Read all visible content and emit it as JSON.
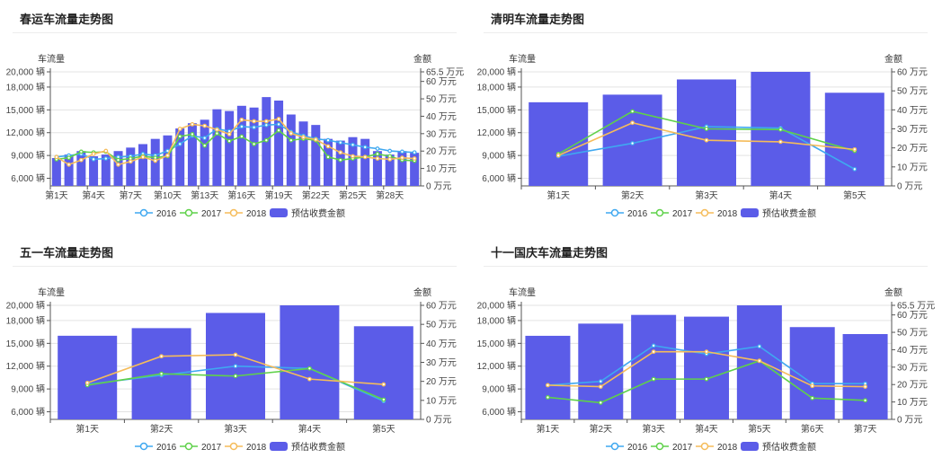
{
  "colors": {
    "bar": "#5b5ce8",
    "s2016": "#3fa8f0",
    "s2017": "#5fd14a",
    "s2018": "#f5bc5a",
    "grid": "#e3e3e3",
    "axis": "#555555"
  },
  "legend_labels": [
    "2016",
    "2017",
    "2018",
    "预估收费金额"
  ],
  "panels": [
    {
      "title": "春运车流量走势图",
      "left_axis_name": "车流量",
      "right_axis_name": "金额",
      "left_ticks": [
        "6,000 辆",
        "9,000 辆",
        "12,000 辆",
        "15,000 辆",
        "18,000 辆",
        "20,000 辆"
      ],
      "right_ticks": [
        "0 万元",
        "10 万元",
        "20 万元",
        "30 万元",
        "40 万元",
        "50 万元",
        "60 万元",
        "65.5 万元"
      ],
      "x_labels": [
        "第1天",
        "第4天",
        "第7天",
        "第10天",
        "第13天",
        "第16天",
        "第19天",
        "第22天",
        "第25天",
        "第28天"
      ]
    },
    {
      "title": "清明车流量走势图",
      "left_axis_name": "车流量",
      "right_axis_name": "金额",
      "left_ticks": [
        "6,000 辆",
        "9,000 辆",
        "12,000 辆",
        "15,000 辆",
        "18,000 辆",
        "20,000 辆"
      ],
      "right_ticks": [
        "0 万元",
        "10 万元",
        "20 万元",
        "30 万元",
        "40 万元",
        "50 万元",
        "60 万元"
      ],
      "x_labels": [
        "第1天",
        "第2天",
        "第3天",
        "第4天",
        "第5天"
      ]
    },
    {
      "title": "五一车流量走势图",
      "left_axis_name": "车流量",
      "right_axis_name": "金额",
      "left_ticks": [
        "6,000 辆",
        "9,000 辆",
        "12,000 辆",
        "15,000 辆",
        "18,000 辆",
        "20,000 辆"
      ],
      "right_ticks": [
        "0 万元",
        "10 万元",
        "20 万元",
        "30 万元",
        "40 万元",
        "50 万元",
        "60 万元"
      ],
      "x_labels": [
        "第1天",
        "第2天",
        "第3天",
        "第4天",
        "第5天"
      ]
    },
    {
      "title": "十一国庆车流量走势图",
      "left_axis_name": "车流量",
      "right_axis_name": "金额",
      "left_ticks": [
        "6,000 辆",
        "9,000 辆",
        "12,000 辆",
        "15,000 辆",
        "18,000 辆",
        "20,000 辆"
      ],
      "right_ticks": [
        "0 万元",
        "10 万元",
        "20 万元",
        "30 万元",
        "40 万元",
        "50 万元",
        "60 万元",
        "65.5 万元"
      ],
      "x_labels": [
        "第1天",
        "第2天",
        "第3天",
        "第4天",
        "第5天",
        "第6天",
        "第7天"
      ]
    }
  ],
  "chart_data": [
    {
      "type": "bar",
      "title": "春运车流量走势图",
      "ylabel": "车流量",
      "y2label": "金额",
      "ylim": [
        5000,
        20000
      ],
      "y2lim": [
        0,
        65.5
      ],
      "categories": [
        "第1天",
        "第2天",
        "第3天",
        "第4天",
        "第5天",
        "第6天",
        "第7天",
        "第8天",
        "第9天",
        "第10天",
        "第11天",
        "第12天",
        "第13天",
        "第14天",
        "第15天",
        "第16天",
        "第17天",
        "第18天",
        "第19天",
        "第20天",
        "第21天",
        "第22天",
        "第23天",
        "第24天",
        "第25天",
        "第26天",
        "第27天",
        "第28天",
        "第29天",
        "第30天"
      ],
      "bar_series": {
        "name": "预估收费金额",
        "axis": "right",
        "values": [
          16,
          18,
          20,
          17,
          18,
          20,
          22,
          24,
          27,
          29,
          33,
          36,
          38,
          44,
          43,
          46,
          45,
          51,
          49,
          41,
          37,
          35,
          27,
          26,
          28,
          27,
          20,
          18,
          20,
          19
        ]
      },
      "series": [
        {
          "name": "2016",
          "axis": "left",
          "values": [
            8800,
            9000,
            9200,
            8500,
            8600,
            8800,
            8900,
            9200,
            9000,
            9600,
            10500,
            11600,
            11300,
            12500,
            12200,
            12800,
            12700,
            13000,
            13100,
            12100,
            11600,
            11200,
            11000,
            10700,
            10400,
            10100,
            9900,
            9600,
            9500,
            9400
          ]
        },
        {
          "name": "2017",
          "axis": "left",
          "values": [
            8500,
            8700,
            9500,
            9400,
            9500,
            8400,
            8600,
            8900,
            8700,
            8900,
            11500,
            11800,
            10300,
            11900,
            10900,
            11500,
            10500,
            11000,
            12300,
            11000,
            11200,
            11000,
            8800,
            8400,
            8600,
            8800,
            9200,
            8900,
            8400,
            8300
          ]
        },
        {
          "name": "2018",
          "axis": "left",
          "values": [
            8800,
            7800,
            8400,
            9200,
            9600,
            7800,
            8200,
            8800,
            8300,
            9000,
            12500,
            13100,
            12900,
            12400,
            11800,
            13700,
            13500,
            13500,
            13800,
            11900,
            11400,
            11100,
            10200,
            9400,
            8900,
            8800,
            8600,
            8500,
            8700,
            8600
          ]
        }
      ]
    },
    {
      "type": "bar",
      "title": "清明车流量走势图",
      "ylabel": "车流量",
      "y2label": "金额",
      "ylim": [
        5000,
        20000
      ],
      "y2lim": [
        0,
        60
      ],
      "categories": [
        "第1天",
        "第2天",
        "第3天",
        "第4天",
        "第5天"
      ],
      "bar_series": {
        "name": "预估收费金额",
        "axis": "right",
        "values": [
          44,
          48,
          56,
          60,
          49
        ]
      },
      "series": [
        {
          "name": "2016",
          "axis": "left",
          "values": [
            8900,
            10600,
            12800,
            12600,
            7200
          ]
        },
        {
          "name": "2017",
          "axis": "left",
          "values": [
            9200,
            14800,
            12500,
            12400,
            9600
          ]
        },
        {
          "name": "2018",
          "axis": "left",
          "values": [
            9000,
            13300,
            11000,
            10800,
            9800
          ]
        }
      ]
    },
    {
      "type": "bar",
      "title": "五一车流量走势图",
      "ylabel": "车流量",
      "y2label": "金额",
      "ylim": [
        5000,
        20000
      ],
      "y2lim": [
        0,
        60
      ],
      "categories": [
        "第1天",
        "第2天",
        "第3天",
        "第4天",
        "第5天"
      ],
      "bar_series": {
        "name": "预估收费金额",
        "axis": "right",
        "values": [
          44,
          48,
          56,
          60,
          49
        ]
      },
      "series": [
        {
          "name": "2016",
          "axis": "left",
          "values": [
            9600,
            10800,
            12000,
            11700,
            7400
          ]
        },
        {
          "name": "2017",
          "axis": "left",
          "values": [
            9500,
            11000,
            10700,
            11700,
            7600
          ]
        },
        {
          "name": "2018",
          "axis": "left",
          "values": [
            9800,
            13300,
            13500,
            10300,
            9600
          ]
        }
      ]
    },
    {
      "type": "bar",
      "title": "十一国庆车流量走势图",
      "ylabel": "车流量",
      "y2label": "金额",
      "ylim": [
        5000,
        20000
      ],
      "y2lim": [
        0,
        65.5
      ],
      "categories": [
        "第1天",
        "第2天",
        "第3天",
        "第4天",
        "第5天",
        "第6天",
        "第7天"
      ],
      "bar_series": {
        "name": "预估收费金额",
        "axis": "right",
        "values": [
          48,
          55,
          60,
          59,
          66,
          53,
          49
        ]
      },
      "series": [
        {
          "name": "2016",
          "axis": "left",
          "values": [
            9500,
            10000,
            14700,
            13600,
            14600,
            9700,
            9700
          ]
        },
        {
          "name": "2017",
          "axis": "left",
          "values": [
            7900,
            7200,
            10300,
            10300,
            12700,
            7800,
            7500
          ]
        },
        {
          "name": "2018",
          "axis": "left",
          "values": [
            9500,
            9300,
            13900,
            13900,
            12700,
            9400,
            9300
          ]
        }
      ]
    }
  ]
}
